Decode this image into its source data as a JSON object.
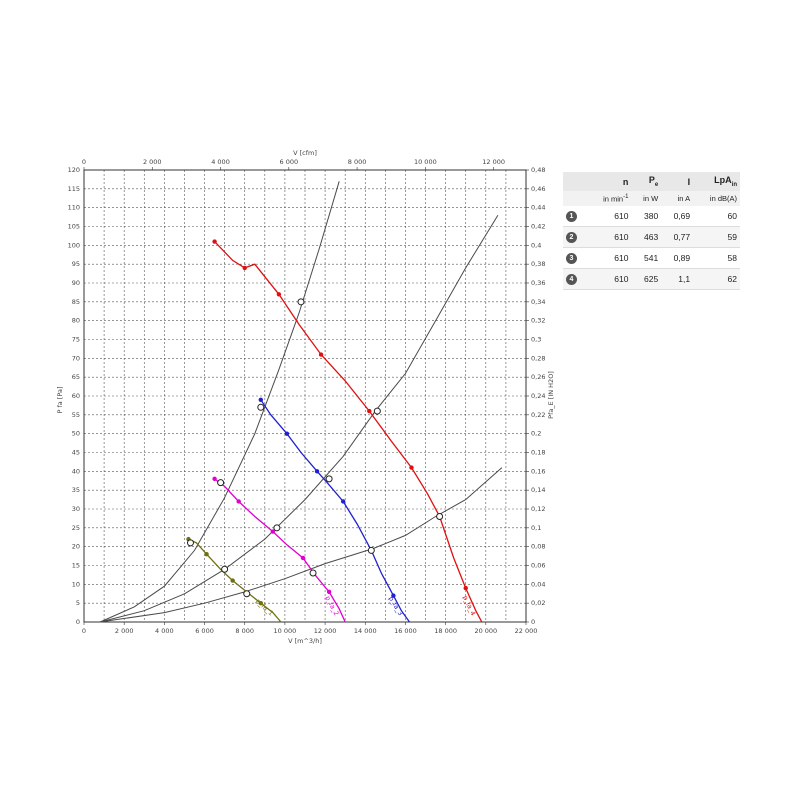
{
  "chart_data": {
    "type": "line",
    "top_axis": {
      "label": "V [cfm]",
      "ticks": [
        "0",
        "2 000",
        "4 000",
        "6 000",
        "8 000",
        "10 000",
        "12 000"
      ]
    },
    "bottom_axis": {
      "label": "V [m^3/h]",
      "ticks": [
        "0",
        "2 000",
        "4 000",
        "6 000",
        "8 000",
        "10 000",
        "12 000",
        "14 000",
        "16 000",
        "18 000",
        "20 000",
        "22 000"
      ],
      "xlim": [
        0,
        22000
      ]
    },
    "left_axis": {
      "label": "P fa [Pa]",
      "ticks": [
        "0",
        "5",
        "10",
        "15",
        "20",
        "25",
        "30",
        "35",
        "40",
        "45",
        "50",
        "55",
        "60",
        "65",
        "70",
        "75",
        "80",
        "85",
        "90",
        "95",
        "100",
        "105",
        "110",
        "115",
        "120"
      ],
      "ylim": [
        0,
        120
      ]
    },
    "right_axis": {
      "label": "Pfa_E [IN H2O]",
      "ticks": [
        "0",
        "0,02",
        "0,04",
        "0,06",
        "0,08",
        "0,1",
        "0,12",
        "0,14",
        "0,16",
        "0,18",
        "0,2",
        "0,22",
        "0,24",
        "0,26",
        "0,28",
        "0,3",
        "0,32",
        "0,34",
        "0,36",
        "0,38",
        "0,4",
        "0,42",
        "0,44",
        "0,46",
        "0,48"
      ]
    },
    "grid": true,
    "series": [
      {
        "name": "pfa_1",
        "label": "p_fa_1",
        "color": "#707010",
        "points": [
          [
            5200,
            22
          ],
          [
            5600,
            21
          ],
          [
            6100,
            18
          ],
          [
            6800,
            14
          ],
          [
            7400,
            11
          ],
          [
            8100,
            8
          ],
          [
            8800,
            5
          ],
          [
            9400,
            2.5
          ],
          [
            9800,
            0
          ]
        ]
      },
      {
        "name": "pfa_2",
        "label": "p_fa_2",
        "color": "#e000d0",
        "points": [
          [
            6500,
            38
          ],
          [
            7000,
            36
          ],
          [
            7700,
            32
          ],
          [
            8500,
            28
          ],
          [
            9400,
            24
          ],
          [
            10100,
            20.5
          ],
          [
            10900,
            17
          ],
          [
            11500,
            12.5
          ],
          [
            12200,
            8
          ],
          [
            12700,
            3.5
          ],
          [
            13000,
            0
          ]
        ]
      },
      {
        "name": "pfa_3",
        "label": "p_fa_3",
        "color": "#2020d0",
        "points": [
          [
            8800,
            59
          ],
          [
            9300,
            55
          ],
          [
            10100,
            50
          ],
          [
            10800,
            45
          ],
          [
            11600,
            40
          ],
          [
            12100,
            37
          ],
          [
            12900,
            32
          ],
          [
            13600,
            26
          ],
          [
            14300,
            19
          ],
          [
            14800,
            13
          ],
          [
            15400,
            7
          ],
          [
            15800,
            3
          ],
          [
            16200,
            0
          ]
        ]
      },
      {
        "name": "pfa_4",
        "label": "p_fa_4",
        "color": "#e01010",
        "points": [
          [
            6500,
            101
          ],
          [
            7400,
            96
          ],
          [
            8000,
            94
          ],
          [
            8500,
            95
          ],
          [
            9700,
            87
          ],
          [
            10700,
            79
          ],
          [
            11800,
            71
          ],
          [
            13000,
            64
          ],
          [
            14200,
            56
          ],
          [
            15300,
            48
          ],
          [
            16300,
            41
          ],
          [
            17100,
            34
          ],
          [
            17700,
            28
          ],
          [
            18400,
            17
          ],
          [
            19000,
            9
          ],
          [
            19500,
            3
          ],
          [
            19800,
            0
          ]
        ]
      }
    ],
    "system_curves": [
      {
        "color": "#4a4a4a",
        "points": [
          [
            800,
            0
          ],
          [
            2500,
            4
          ],
          [
            4000,
            9.5
          ],
          [
            5500,
            19
          ],
          [
            7000,
            33
          ],
          [
            8500,
            50
          ],
          [
            9700,
            67
          ],
          [
            10700,
            82
          ],
          [
            11700,
            99
          ],
          [
            12700,
            117
          ]
        ]
      },
      {
        "color": "#4a4a4a",
        "points": [
          [
            800,
            0
          ],
          [
            3000,
            3
          ],
          [
            5000,
            7.5
          ],
          [
            7000,
            14
          ],
          [
            9000,
            22
          ],
          [
            11000,
            32.5
          ],
          [
            12900,
            44
          ],
          [
            14500,
            56
          ],
          [
            16000,
            66
          ],
          [
            17500,
            80
          ],
          [
            19000,
            94
          ],
          [
            20600,
            108
          ]
        ]
      },
      {
        "color": "#4a4a4a",
        "points": [
          [
            800,
            0
          ],
          [
            4000,
            2.5
          ],
          [
            6000,
            5
          ],
          [
            8000,
            8
          ],
          [
            10000,
            11.5
          ],
          [
            12000,
            15.5
          ],
          [
            14400,
            19.5
          ],
          [
            16000,
            23
          ],
          [
            17500,
            28
          ],
          [
            19000,
            32.5
          ],
          [
            20800,
            41
          ]
        ]
      }
    ],
    "operating_points": [
      [
        6800,
        37
      ],
      [
        8800,
        57
      ],
      [
        10800,
        85
      ],
      [
        5300,
        21
      ],
      [
        7000,
        14
      ],
      [
        9600,
        25
      ],
      [
        11400,
        13
      ],
      [
        14300,
        19
      ],
      [
        8100,
        7.5
      ],
      [
        12200,
        38
      ],
      [
        14600,
        56
      ],
      [
        17700,
        28
      ]
    ]
  },
  "table": {
    "headers": [
      "",
      "n",
      "Pe",
      "I",
      "LpAin"
    ],
    "units": [
      "",
      "in min-1",
      "in W",
      "in A",
      "in dB(A)"
    ],
    "rows": [
      {
        "id": "1",
        "n": "610",
        "pe": "380",
        "i": "0,69",
        "lpa": "60"
      },
      {
        "id": "2",
        "n": "610",
        "pe": "463",
        "i": "0,77",
        "lpa": "59"
      },
      {
        "id": "3",
        "n": "610",
        "pe": "541",
        "i": "0,89",
        "lpa": "58"
      },
      {
        "id": "4",
        "n": "610",
        "pe": "625",
        "i": "1,1",
        "lpa": "62"
      }
    ]
  }
}
